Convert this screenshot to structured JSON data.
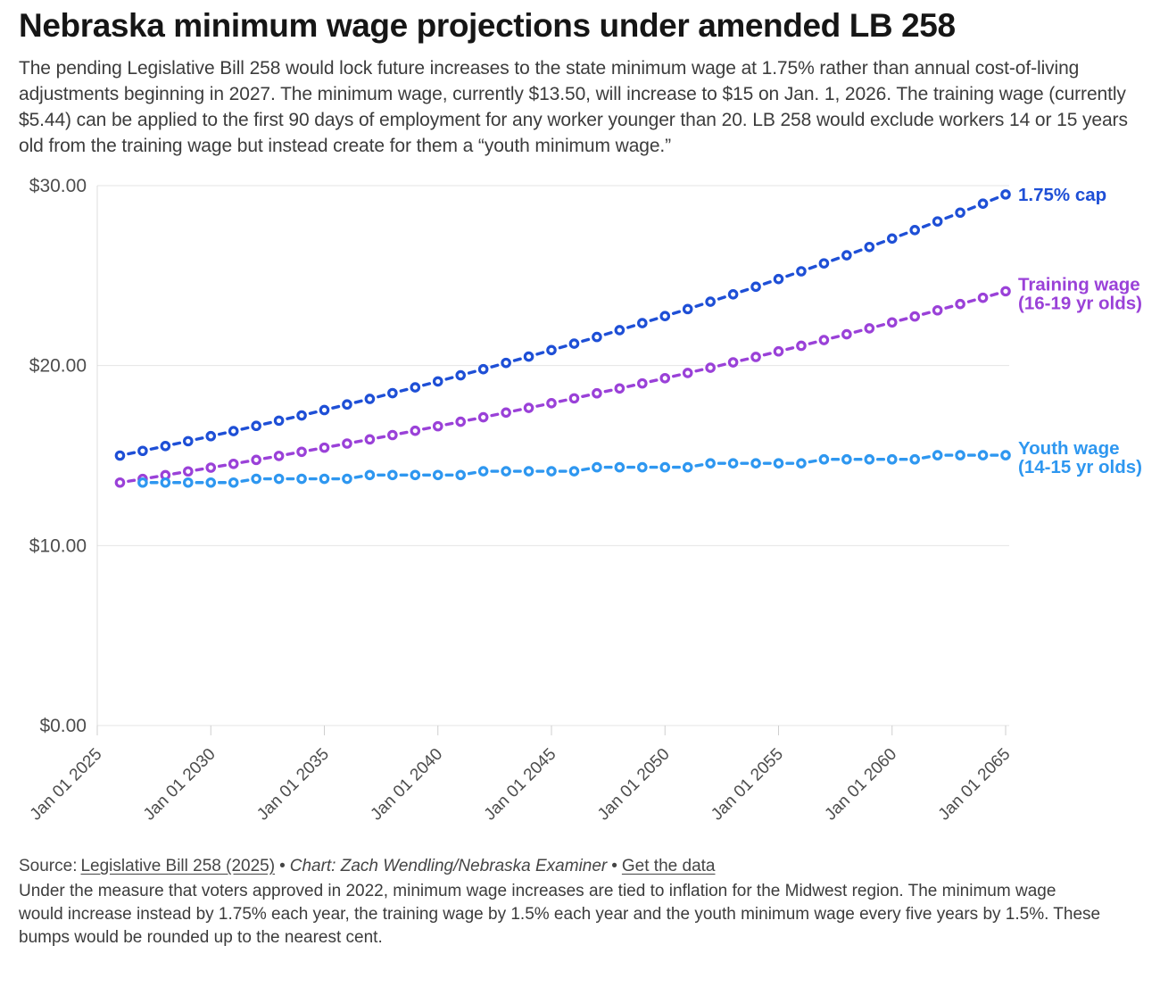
{
  "header": {
    "title": "Nebraska minimum wage projections under amended LB 258",
    "description": "The pending Legislative Bill 258 would lock future increases to the state minimum wage at 1.75% rather than annual cost-of-living adjustments beginning in 2027. The minimum wage, currently $13.50, will increase to $15 on Jan. 1, 2026. The training wage (currently $5.44) can be applied to the first 90 days of employment for any worker younger than 20. LB 258 would exclude workers 14 or 15 years old from the training wage but instead create for them a “youth minimum wage.”"
  },
  "chart_data": {
    "type": "line",
    "title": "Nebraska minimum wage projections under amended LB 258",
    "xlabel": "",
    "ylabel": "",
    "grid": "horizontal",
    "legend_position": "right-end-labels",
    "x_axis": {
      "range": [
        2025,
        2065
      ],
      "tick_years": [
        2025,
        2030,
        2035,
        2040,
        2045,
        2050,
        2055,
        2060,
        2065
      ],
      "tick_labels": [
        "Jan 01 2025",
        "Jan 01 2030",
        "Jan 01 2035",
        "Jan 01 2040",
        "Jan 01 2045",
        "Jan 01 2050",
        "Jan 01 2055",
        "Jan 01 2060",
        "Jan 01 2065"
      ]
    },
    "y_axis": {
      "range": [
        0,
        30
      ],
      "ticks": [
        {
          "value": 30,
          "label": "$30.00"
        },
        {
          "value": 20,
          "label": "$20.00"
        },
        {
          "value": 10,
          "label": "$10.00"
        },
        {
          "value": 0,
          "label": "$0.00"
        }
      ]
    },
    "series": [
      {
        "id": "cap",
        "name": "1.75% cap",
        "label_lines": [
          "1.75% cap"
        ],
        "color": "#1e4fd6",
        "start_year": 2026,
        "values": [
          15.0,
          15.26,
          15.53,
          15.8,
          16.08,
          16.36,
          16.65,
          16.94,
          17.23,
          17.53,
          17.84,
          18.15,
          18.47,
          18.79,
          19.12,
          19.46,
          19.8,
          20.15,
          20.5,
          20.86,
          21.22,
          21.59,
          21.97,
          22.36,
          22.75,
          23.14,
          23.55,
          23.96,
          24.38,
          24.81,
          25.24,
          25.68,
          26.13,
          26.59,
          27.06,
          27.53,
          28.01,
          28.5,
          29.0,
          29.51
        ]
      },
      {
        "id": "training",
        "name": "Training wage (16-19 yr olds)",
        "label_lines": [
          "Training wage",
          "(16-19 yr olds)"
        ],
        "color": "#9a41d8",
        "start_year": 2026,
        "values": [
          13.5,
          13.7,
          13.91,
          14.12,
          14.33,
          14.54,
          14.76,
          14.98,
          15.21,
          15.44,
          15.67,
          15.9,
          16.14,
          16.38,
          16.63,
          16.88,
          17.13,
          17.39,
          17.65,
          17.91,
          18.18,
          18.46,
          18.73,
          19.01,
          19.3,
          19.59,
          19.88,
          20.18,
          20.48,
          20.79,
          21.1,
          21.42,
          21.74,
          22.07,
          22.4,
          22.73,
          23.07,
          23.42,
          23.77,
          24.13
        ]
      },
      {
        "id": "youth",
        "name": "Youth wage (14-15 yr olds)",
        "label_lines": [
          "Youth wage",
          "(14-15 yr olds)"
        ],
        "color": "#2e97f0",
        "start_year": 2027,
        "values": [
          13.5,
          13.5,
          13.5,
          13.5,
          13.5,
          13.71,
          13.71,
          13.71,
          13.71,
          13.71,
          13.92,
          13.92,
          13.92,
          13.92,
          13.92,
          14.13,
          14.13,
          14.13,
          14.13,
          14.13,
          14.35,
          14.35,
          14.35,
          14.35,
          14.35,
          14.57,
          14.57,
          14.57,
          14.57,
          14.57,
          14.79,
          14.79,
          14.79,
          14.79,
          14.79,
          15.02,
          15.02,
          15.02,
          15.02
        ]
      }
    ]
  },
  "footer": {
    "source_prefix": "Source:",
    "source_link": "Legislative Bill 258 (2025)",
    "bullet": "•",
    "credit": "Chart: Zach Wendling/Nebraska Examiner",
    "data_link": "Get the data",
    "note": "Under the measure that voters approved in 2022, minimum wage increases are tied to inflation for the Midwest region. The minimum wage would increase instead by 1.75% each year, the training wage by 1.5% each year and the youth minimum wage every five years by 1.5%. These bumps would be rounded up to the nearest cent."
  }
}
